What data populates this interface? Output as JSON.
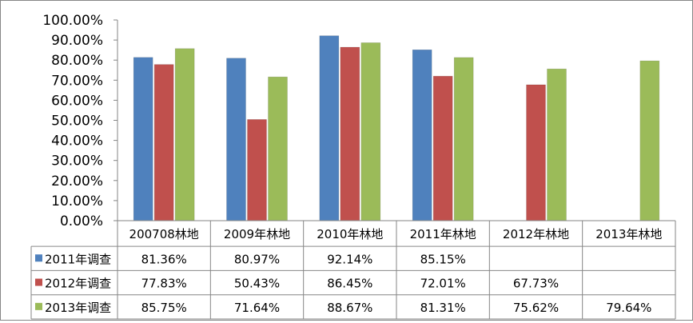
{
  "chart_data": {
    "type": "bar",
    "title": "",
    "xlabel": "",
    "ylabel": "",
    "ylim": [
      0,
      100
    ],
    "y_ticks": [
      "0.00%",
      "10.00%",
      "20.00%",
      "30.00%",
      "40.00%",
      "50.00%",
      "60.00%",
      "70.00%",
      "80.00%",
      "90.00%",
      "100.00%"
    ],
    "categories": [
      "200708林地",
      "2009年林地",
      "2010年林地",
      "2011年林地",
      "2012年林地",
      "2013年林地"
    ],
    "series": [
      {
        "name": "2011年调查",
        "color": "#4F81BD",
        "values": [
          81.36,
          80.97,
          92.14,
          85.15,
          null,
          null
        ],
        "labels": [
          "81.36%",
          "80.97%",
          "92.14%",
          "85.15%",
          "",
          ""
        ]
      },
      {
        "name": "2012年调查",
        "color": "#C0504D",
        "values": [
          77.83,
          50.43,
          86.45,
          72.01,
          67.73,
          null
        ],
        "labels": [
          "77.83%",
          "50.43%",
          "86.45%",
          "72.01%",
          "67.73%",
          ""
        ]
      },
      {
        "name": "2013年调查",
        "color": "#9BBB59",
        "values": [
          85.75,
          71.64,
          88.67,
          81.31,
          75.62,
          79.64
        ],
        "labels": [
          "85.75%",
          "71.64%",
          "88.67%",
          "81.31%",
          "75.62%",
          "79.64%"
        ]
      }
    ],
    "grid": false,
    "legend": "data-table",
    "data_table": true
  }
}
